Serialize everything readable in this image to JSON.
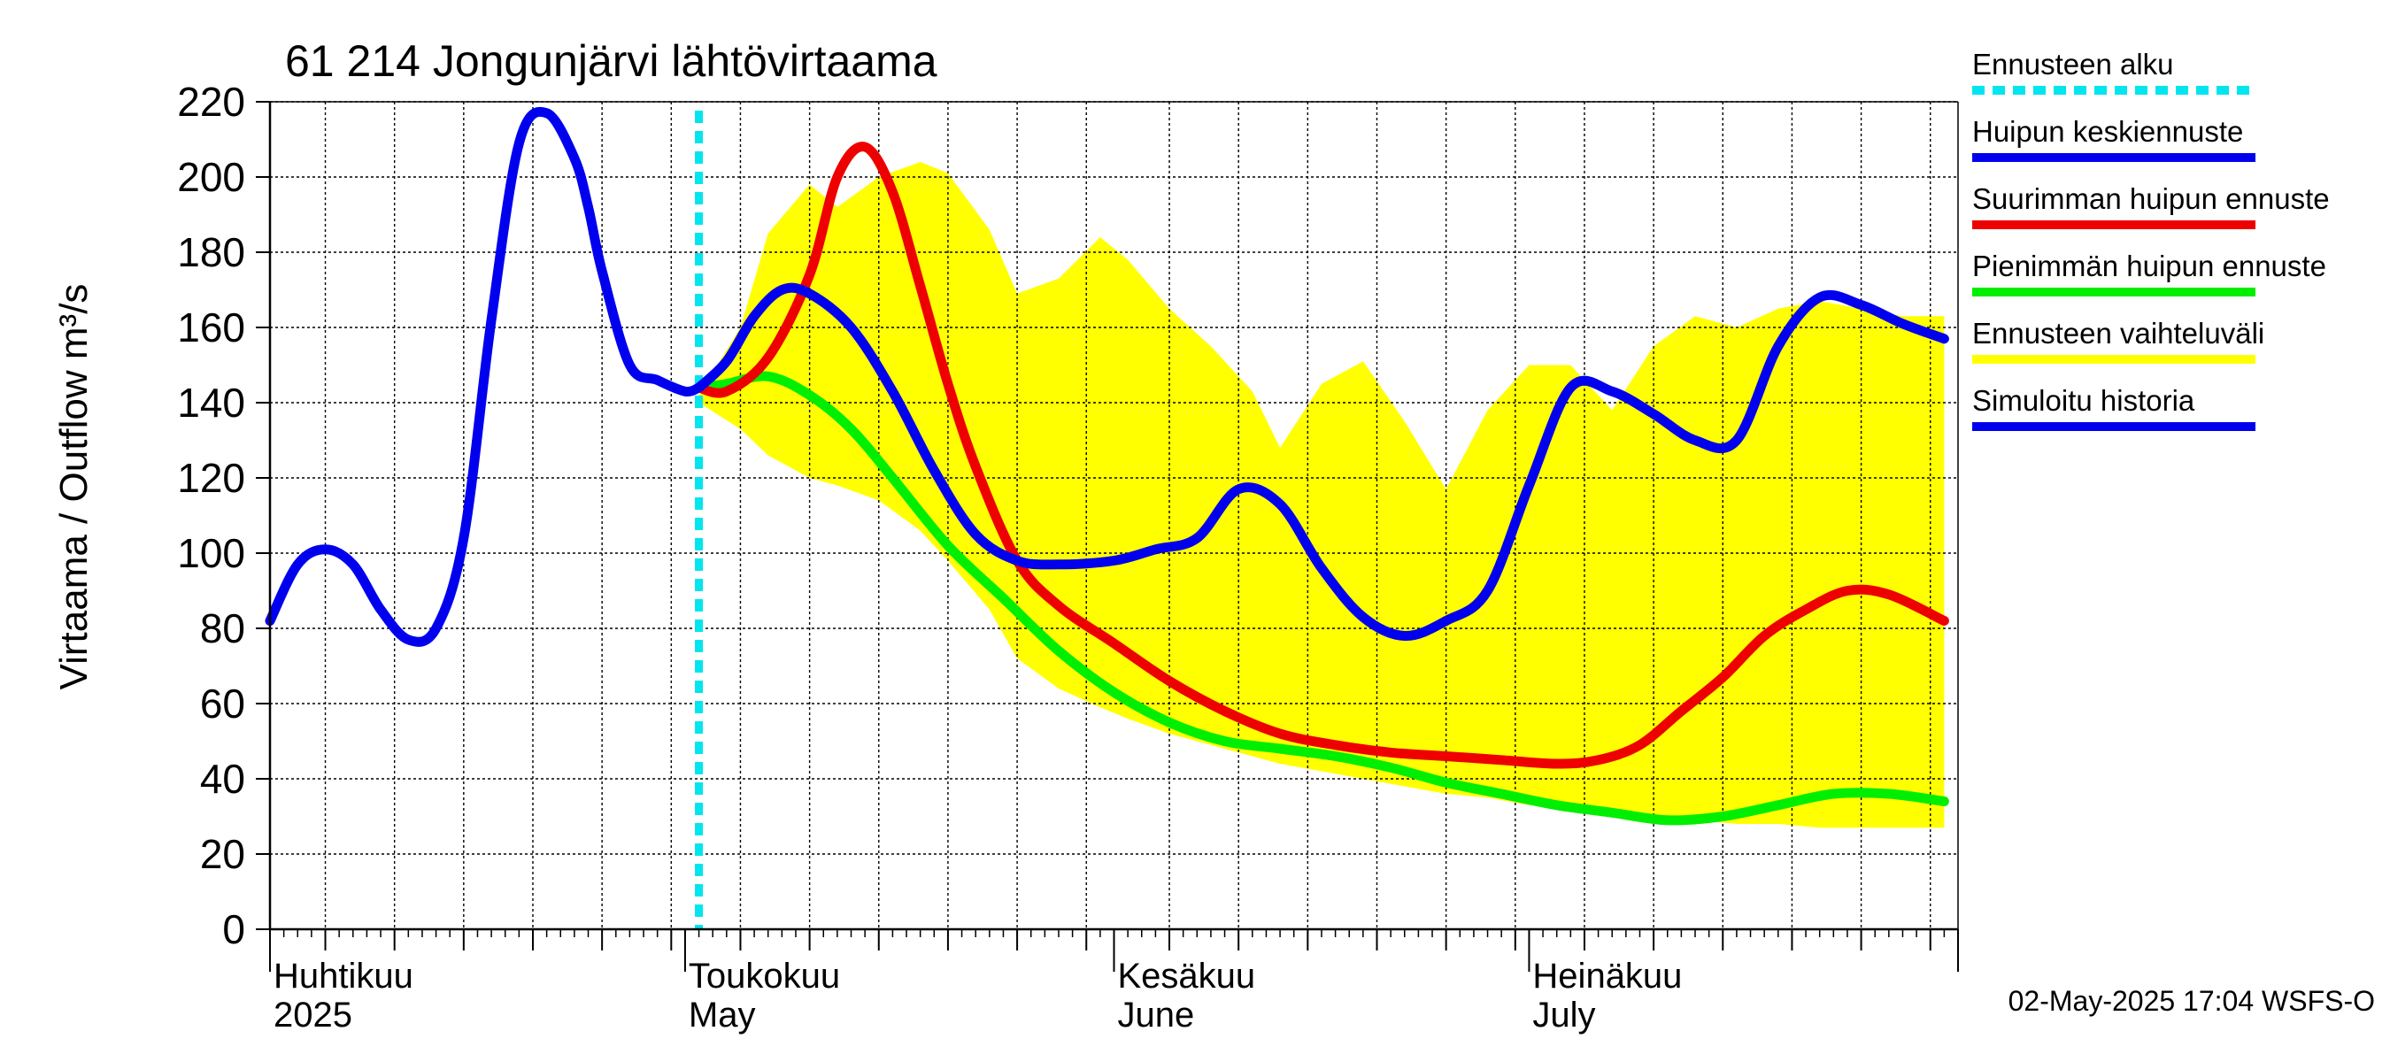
{
  "chart_data": {
    "type": "line",
    "title": "61 214 Jongunjärvi lähtövirtaama",
    "ylabel": "Virtaama / Outflow    m³/s",
    "ylim": [
      0,
      220
    ],
    "yticks": [
      0,
      20,
      40,
      60,
      80,
      100,
      120,
      140,
      160,
      180,
      200,
      220
    ],
    "xlim": [
      "2025-04-01",
      "2025-07-31"
    ],
    "grid": true,
    "legend_position": "right",
    "month_labels": [
      {
        "fi": "Huhtikuu",
        "en": "2025",
        "date": "2025-04-01"
      },
      {
        "fi": "Toukokuu",
        "en": "May",
        "date": "2025-05-01"
      },
      {
        "fi": "Kesäkuu",
        "en": "June",
        "date": "2025-06-01"
      },
      {
        "fi": "Heinäkuu",
        "en": "July",
        "date": "2025-07-01"
      }
    ],
    "forecast_start": "2025-05-02",
    "timestamp": "02-May-2025 17:04 WSFS-O",
    "legend": [
      {
        "label": "Ennusteen alku",
        "color": "#00e5ee",
        "style": "dashed"
      },
      {
        "label": "Huipun keskiennuste",
        "color": "#0000ee",
        "style": "solid"
      },
      {
        "label": "Suurimman huipun ennuste",
        "color": "#ee0000",
        "style": "solid"
      },
      {
        "label": "Pienimmän huipun ennuste",
        "color": "#00ee00",
        "style": "solid"
      },
      {
        "label": "Ennusteen vaihteluväli",
        "color": "#ffff00",
        "style": "solid"
      },
      {
        "label": "Simuloitu historia",
        "color": "#0000ee",
        "style": "solid"
      }
    ],
    "series": [
      {
        "name": "Ennusteen vaihteluväli",
        "color": "#ffff00",
        "kind": "band",
        "x": [
          "2025-05-02",
          "2025-05-05",
          "2025-05-07",
          "2025-05-10",
          "2025-05-12",
          "2025-05-15",
          "2025-05-18",
          "2025-05-20",
          "2025-05-23",
          "2025-05-25",
          "2025-05-28",
          "2025-05-31",
          "2025-06-02",
          "2025-06-05",
          "2025-06-08",
          "2025-06-11",
          "2025-06-13",
          "2025-06-16",
          "2025-06-19",
          "2025-06-22",
          "2025-06-25",
          "2025-06-28",
          "2025-07-01",
          "2025-07-04",
          "2025-07-07",
          "2025-07-10",
          "2025-07-13",
          "2025-07-16",
          "2025-07-19",
          "2025-07-22",
          "2025-07-25",
          "2025-07-28",
          "2025-07-31"
        ],
        "upper": [
          142,
          160,
          185,
          198,
          192,
          200,
          204,
          201,
          186,
          169,
          173,
          184,
          178,
          165,
          155,
          143,
          128,
          145,
          151,
          135,
          117,
          138,
          150,
          150,
          138,
          155,
          163,
          160,
          165,
          167,
          165,
          163,
          163
        ],
        "lower": [
          140,
          133,
          126,
          120,
          118,
          114,
          106,
          98,
          85,
          72,
          64,
          59,
          56,
          52,
          49,
          46,
          44,
          42,
          40,
          38,
          36,
          35,
          33,
          32,
          31,
          30,
          29,
          28,
          28,
          27,
          27,
          27,
          27
        ]
      },
      {
        "name": "Simuloitu historia",
        "color": "#0000ee",
        "x": [
          "2025-04-01",
          "2025-04-03",
          "2025-04-05",
          "2025-04-07",
          "2025-04-09",
          "2025-04-11",
          "2025-04-13",
          "2025-04-15",
          "2025-04-17",
          "2025-04-19",
          "2025-04-21",
          "2025-04-23",
          "2025-04-24",
          "2025-04-25",
          "2025-04-27",
          "2025-04-29",
          "2025-05-01",
          "2025-05-02"
        ],
        "values": [
          82,
          97,
          101,
          97,
          85,
          77,
          80,
          104,
          162,
          209,
          217,
          205,
          192,
          175,
          150,
          146,
          143,
          144
        ]
      },
      {
        "name": "Huipun keskiennuste",
        "color": "#0000ee",
        "x": [
          "2025-05-02",
          "2025-05-04",
          "2025-05-06",
          "2025-05-08",
          "2025-05-10",
          "2025-05-13",
          "2025-05-16",
          "2025-05-19",
          "2025-05-22",
          "2025-05-25",
          "2025-05-28",
          "2025-06-01",
          "2025-06-04",
          "2025-06-07",
          "2025-06-10",
          "2025-06-13",
          "2025-06-16",
          "2025-06-19",
          "2025-06-22",
          "2025-06-25",
          "2025-06-28",
          "2025-07-01",
          "2025-07-04",
          "2025-07-07",
          "2025-07-10",
          "2025-07-13",
          "2025-07-16",
          "2025-07-19",
          "2025-07-22",
          "2025-07-25",
          "2025-07-28",
          "2025-07-31"
        ],
        "values": [
          144,
          151,
          163,
          170,
          169,
          160,
          143,
          122,
          105,
          98,
          97,
          98,
          101,
          104,
          117,
          113,
          96,
          83,
          78,
          82,
          90,
          118,
          144,
          143,
          137,
          130,
          130,
          155,
          168,
          166,
          161,
          157
        ]
      },
      {
        "name": "Suurimman huipun ennuste",
        "color": "#ee0000",
        "x": [
          "2025-05-02",
          "2025-05-04",
          "2025-05-07",
          "2025-05-10",
          "2025-05-12",
          "2025-05-14",
          "2025-05-16",
          "2025-05-18",
          "2025-05-20",
          "2025-05-22",
          "2025-05-25",
          "2025-05-28",
          "2025-06-01",
          "2025-06-05",
          "2025-06-09",
          "2025-06-13",
          "2025-06-17",
          "2025-06-21",
          "2025-06-25",
          "2025-06-29",
          "2025-07-03",
          "2025-07-06",
          "2025-07-09",
          "2025-07-12",
          "2025-07-15",
          "2025-07-18",
          "2025-07-21",
          "2025-07-24",
          "2025-07-27",
          "2025-07-31"
        ],
        "values": [
          144,
          143,
          152,
          174,
          200,
          208,
          196,
          171,
          145,
          123,
          98,
          86,
          76,
          66,
          58,
          52,
          49,
          47,
          46,
          45,
          44,
          45,
          49,
          58,
          67,
          78,
          85,
          90,
          89,
          82
        ]
      },
      {
        "name": "Pienimmän huipun ennuste",
        "color": "#00ee00",
        "x": [
          "2025-05-02",
          "2025-05-04",
          "2025-05-07",
          "2025-05-10",
          "2025-05-13",
          "2025-05-16",
          "2025-05-20",
          "2025-05-24",
          "2025-05-28",
          "2025-06-01",
          "2025-06-05",
          "2025-06-09",
          "2025-06-13",
          "2025-06-17",
          "2025-06-21",
          "2025-06-25",
          "2025-06-29",
          "2025-07-03",
          "2025-07-07",
          "2025-07-11",
          "2025-07-15",
          "2025-07-19",
          "2025-07-23",
          "2025-07-27",
          "2025-07-31"
        ],
        "values": [
          144,
          145,
          147,
          142,
          133,
          120,
          102,
          88,
          74,
          63,
          55,
          50,
          48,
          46,
          43,
          39,
          36,
          33,
          31,
          29,
          30,
          33,
          36,
          36,
          34
        ]
      }
    ]
  }
}
